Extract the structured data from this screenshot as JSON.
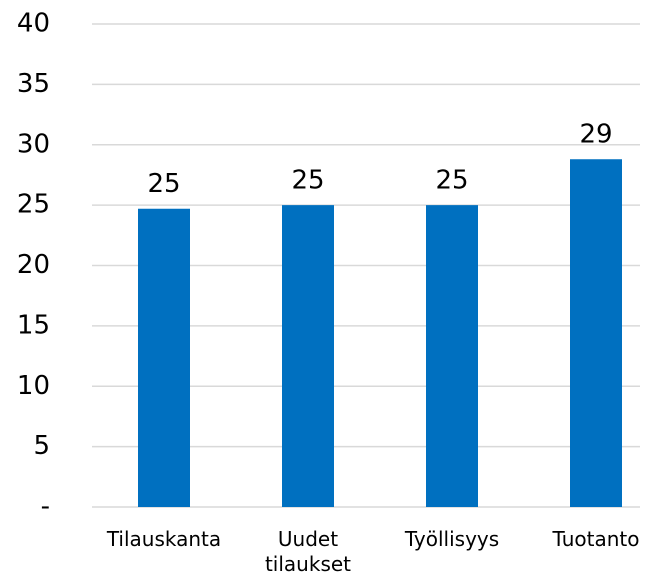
{
  "chart_data": {
    "type": "bar",
    "categories": [
      "Tilauskanta",
      "Uudet tilaukset",
      "Työllisyys",
      "Tuotanto"
    ],
    "values": [
      24.7,
      25,
      25,
      28.8
    ],
    "value_labels": [
      "25",
      "25",
      "25",
      "29"
    ],
    "color": "#0070c0",
    "ylim": [
      0,
      40
    ],
    "yticks": [
      {
        "value": 0,
        "label": "-"
      },
      5,
      10,
      15,
      20,
      25,
      30,
      35,
      40
    ],
    "grid": true
  }
}
